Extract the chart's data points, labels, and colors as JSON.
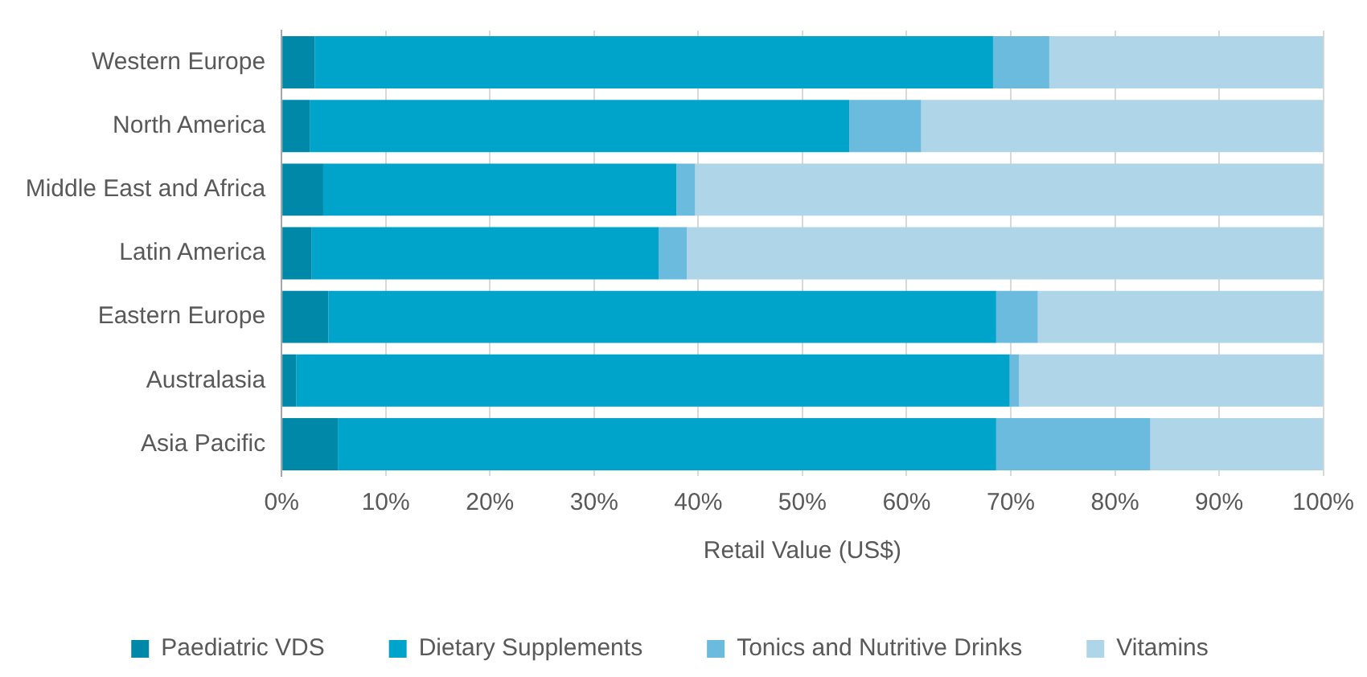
{
  "chart_data": {
    "type": "bar",
    "orientation": "horizontal",
    "stacked": true,
    "xlabel": "Retail Value (US$)",
    "categories": [
      "Western Europe",
      "North America",
      "Middle East and Africa",
      "Latin America",
      "Eastern Europe",
      "Australasia",
      "Asia Pacific"
    ],
    "series": [
      {
        "name": "Paediatric VDS",
        "color": "#0088a9",
        "values": [
          3.2,
          2.7,
          4.0,
          2.9,
          4.5,
          1.4,
          5.4
        ]
      },
      {
        "name": "Dietary Supplements",
        "color": "#00a4cb",
        "values": [
          65.1,
          51.8,
          33.9,
          33.3,
          64.1,
          68.5,
          63.2
        ]
      },
      {
        "name": "Tonics and Nutritive Drinks",
        "color": "#6bbbdf",
        "values": [
          5.4,
          6.9,
          1.8,
          2.7,
          4.0,
          0.9,
          14.8
        ]
      },
      {
        "name": "Vitamins",
        "color": "#afd5e8",
        "values": [
          26.3,
          38.6,
          60.3,
          61.1,
          27.4,
          29.2,
          16.6
        ]
      }
    ],
    "xlim": [
      0,
      100
    ],
    "xticks": [
      {
        "value": 0,
        "label": "0%"
      },
      {
        "value": 10,
        "label": "10%"
      },
      {
        "value": 20,
        "label": "20%"
      },
      {
        "value": 30,
        "label": "30%"
      },
      {
        "value": 40,
        "label": "40%"
      },
      {
        "value": 50,
        "label": "50%"
      },
      {
        "value": 60,
        "label": "60%"
      },
      {
        "value": 70,
        "label": "70%"
      },
      {
        "value": 80,
        "label": "80%"
      },
      {
        "value": 90,
        "label": "90%"
      },
      {
        "value": 100,
        "label": "100%"
      }
    ],
    "grid": "x",
    "legend": "bottom"
  }
}
